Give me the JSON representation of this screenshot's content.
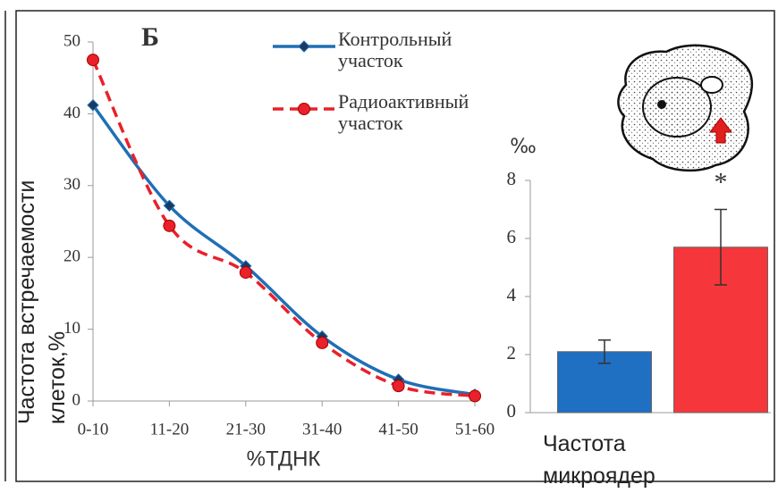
{
  "chart_data": [
    {
      "type": "line",
      "title": "Б",
      "categories": [
        "0-10",
        "11-20",
        "21-30",
        "31-40",
        "41-50",
        "51-60"
      ],
      "series": [
        {
          "name": "Контрольный участок",
          "color": "#1f6fb5",
          "marker": "diamond",
          "dash": false,
          "values": [
            41.2,
            27.2,
            18.8,
            9,
            3,
            0.9
          ]
        },
        {
          "name": "Радиоактивный участок",
          "color": "#e8212a",
          "marker": "circle",
          "dash": true,
          "values": [
            47.5,
            24.4,
            17.9,
            8.1,
            2.1,
            0.7
          ]
        }
      ],
      "ylim": [
        0,
        50
      ],
      "yticks": [
        0,
        10,
        20,
        30,
        40,
        50
      ],
      "x_label": "%ТДНК",
      "y_label": "Частота встречаемости клеток,%"
    },
    {
      "type": "bar",
      "values": [
        2.1,
        5.7
      ],
      "errors": [
        0.4,
        1.3
      ],
      "colors": [
        "#1f6fc2",
        "#f5363b"
      ],
      "ylim": [
        0,
        8
      ],
      "yticks": [
        0,
        2,
        4,
        6,
        8
      ],
      "y_unit": "‰",
      "annotations": [
        {
          "text": "*",
          "bar": 1
        }
      ],
      "x_label": "Частота микроядер"
    }
  ]
}
